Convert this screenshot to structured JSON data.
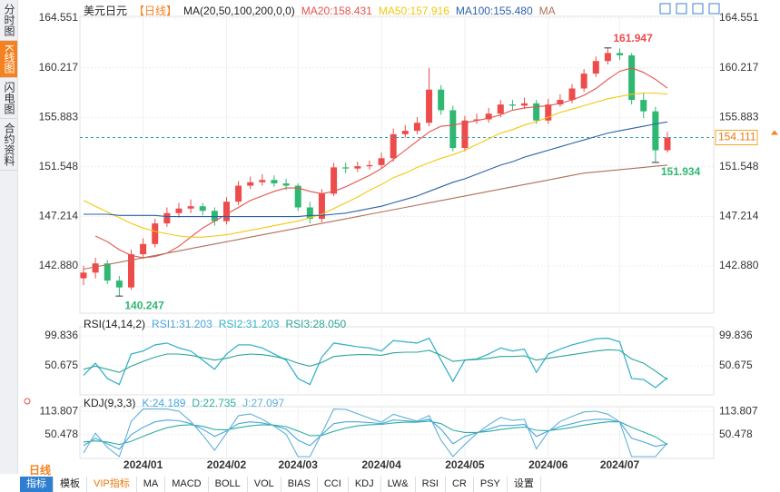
{
  "sidebar": {
    "tabs": [
      "分时图",
      "K线图",
      "闪电图",
      "合约资料"
    ],
    "active_tab": 1
  },
  "period_tab": "日线",
  "toolbar": [
    "指标",
    "模板",
    "VIP指标",
    "MA",
    "MACD",
    "BOLL",
    "VOL",
    "BIAS",
    "CCI",
    "KDJ",
    "LW&",
    "RSI",
    "CR",
    "PSY",
    "设置"
  ],
  "chart_data": [
    {
      "type": "candlestick",
      "symbol": "美元日元",
      "period": "【日线】",
      "indicator": "MA(20,50,100,200,0,0)",
      "up_color": "#ee4b4b",
      "down_color": "#2eb872",
      "open": [
        141.8,
        142.3,
        143.1,
        141.6,
        141.0,
        143.9,
        144.8,
        146.6,
        147.5,
        147.9,
        148.1,
        147.7,
        146.8,
        148.5,
        149.9,
        150.2,
        150.4,
        150.1,
        149.9,
        148.0,
        147.0,
        149.2,
        151.5,
        151.4,
        151.6,
        151.7,
        152.3,
        154.4,
        154.7,
        155.4,
        158.3,
        156.5,
        153.2,
        155.6,
        155.7,
        156.2,
        157.0,
        156.9,
        157.1,
        155.6,
        157.0,
        157.4,
        158.4,
        159.7,
        160.8,
        161.5,
        161.3,
        157.4,
        156.4,
        153.0
      ],
      "high": [
        142.9,
        143.6,
        143.4,
        142.0,
        144.3,
        145.3,
        147.0,
        148.0,
        148.4,
        148.7,
        148.4,
        148.0,
        148.9,
        150.3,
        150.7,
        150.9,
        150.8,
        150.5,
        150.1,
        148.5,
        149.6,
        151.9,
        151.9,
        152.0,
        152.1,
        152.8,
        154.9,
        155.2,
        155.9,
        160.2,
        158.7,
        156.9,
        156.0,
        156.2,
        156.7,
        157.4,
        157.4,
        157.6,
        157.4,
        157.5,
        157.9,
        158.8,
        160.1,
        161.2,
        161.947,
        161.9,
        161.5,
        158.0,
        156.8,
        154.6
      ],
      "low": [
        141.2,
        141.8,
        141.3,
        140.247,
        140.8,
        143.5,
        144.5,
        146.3,
        147.1,
        147.5,
        147.3,
        146.4,
        146.5,
        148.2,
        149.6,
        149.9,
        149.8,
        149.5,
        147.7,
        146.6,
        146.7,
        149.0,
        151.0,
        151.1,
        151.3,
        151.4,
        152.0,
        154.1,
        154.4,
        155.1,
        156.1,
        152.9,
        152.9,
        155.3,
        155.4,
        155.9,
        156.5,
        156.6,
        155.3,
        155.3,
        156.8,
        157.1,
        158.1,
        159.4,
        160.5,
        160.9,
        157.0,
        155.8,
        151.934,
        152.8
      ],
      "close": [
        142.3,
        143.1,
        141.6,
        141.0,
        143.9,
        144.8,
        146.6,
        147.5,
        147.9,
        148.1,
        147.7,
        146.8,
        148.5,
        149.9,
        150.2,
        150.4,
        150.1,
        149.9,
        148.0,
        147.0,
        149.2,
        151.5,
        151.4,
        151.6,
        151.7,
        152.3,
        154.4,
        154.7,
        155.4,
        158.3,
        156.5,
        153.2,
        155.6,
        155.7,
        156.2,
        157.0,
        156.9,
        157.1,
        155.6,
        157.0,
        157.4,
        158.4,
        159.7,
        160.8,
        161.5,
        161.3,
        157.4,
        156.4,
        153.0,
        154.111
      ],
      "series": [
        {
          "name": "MA20:158.431",
          "color": "#e5524d",
          "values": [
            null,
            145.5,
            145.0,
            144.3,
            143.8,
            143.6,
            143.7,
            144.0,
            144.6,
            145.4,
            146.2,
            146.8,
            147.4,
            148.0,
            148.6,
            149.0,
            149.4,
            149.7,
            149.7,
            149.4,
            149.2,
            149.4,
            149.8,
            150.3,
            150.8,
            151.4,
            152.2,
            153.0,
            153.8,
            154.6,
            155.1,
            155.2,
            155.4,
            155.6,
            155.8,
            156.1,
            156.5,
            156.7,
            156.8,
            156.9,
            157.1,
            157.4,
            157.8,
            158.4,
            159.2,
            159.9,
            160.2,
            159.8,
            159.2,
            158.431
          ]
        },
        {
          "name": "MA50:157.916",
          "color": "#f2c811",
          "values": [
            148.6,
            148.1,
            147.6,
            147.1,
            146.6,
            146.2,
            145.9,
            145.7,
            145.5,
            145.4,
            145.4,
            145.5,
            145.6,
            145.8,
            146.0,
            146.2,
            146.4,
            146.6,
            146.8,
            147.1,
            147.4,
            147.9,
            148.4,
            148.9,
            149.5,
            150.0,
            150.6,
            151.0,
            151.5,
            151.9,
            152.3,
            152.6,
            153.0,
            153.5,
            154.0,
            154.5,
            154.8,
            155.2,
            155.5,
            155.9,
            156.3,
            156.6,
            156.9,
            157.2,
            157.5,
            157.7,
            157.9,
            158.0,
            158.0,
            157.916
          ]
        },
        {
          "name": "MA100:155.480",
          "color": "#2d62a8",
          "values": [
            147.4,
            147.4,
            147.4,
            147.3,
            147.3,
            147.3,
            147.3,
            147.2,
            147.2,
            147.2,
            147.2,
            147.2,
            147.2,
            147.2,
            147.2,
            147.2,
            147.2,
            147.2,
            147.2,
            147.3,
            147.3,
            147.4,
            147.5,
            147.7,
            147.9,
            148.1,
            148.4,
            148.7,
            149.0,
            149.4,
            149.8,
            150.2,
            150.5,
            150.9,
            151.3,
            151.7,
            152.0,
            152.4,
            152.7,
            153.0,
            153.3,
            153.6,
            153.9,
            154.2,
            154.5,
            154.7,
            154.9,
            155.1,
            155.3,
            155.48
          ]
        },
        {
          "name": "MA",
          "color": "#b0705a",
          "values": [
            142.6,
            142.8,
            143.0,
            143.2,
            143.4,
            143.6,
            143.8,
            144.0,
            144.2,
            144.4,
            144.6,
            144.8,
            145.0,
            145.2,
            145.4,
            145.6,
            145.8,
            146.0,
            146.2,
            146.4,
            146.6,
            146.8,
            147.0,
            147.2,
            147.4,
            147.6,
            147.8,
            148.0,
            148.2,
            148.4,
            148.6,
            148.8,
            149.0,
            149.2,
            149.4,
            149.6,
            149.8,
            150.0,
            150.2,
            150.4,
            150.6,
            150.8,
            151.0,
            151.1,
            151.2,
            151.3,
            151.4,
            151.5,
            151.6,
            151.7
          ]
        }
      ],
      "ylim": [
        138.75,
        164.71
      ],
      "yticks": [
        {
          "value": 142.88,
          "label": "142.880"
        },
        147.214,
        151.548,
        155.883,
        160.217,
        164.551
      ],
      "extreme_labels": [
        {
          "value": 161.947,
          "label": "161.947"
        },
        {
          "value": 140.247,
          "label": "140.247"
        },
        {
          "value": 151.934,
          "label": "151.934"
        }
      ],
      "last": {
        "value": 154.111,
        "label": "154.111"
      },
      "grid": true
    },
    {
      "type": "line",
      "title": "RSI(14,14,2)",
      "series": [
        {
          "name": "RSI1:31.203",
          "color": "#4aa6e0",
          "values": [
            35,
            55,
            30,
            20,
            70,
            75,
            85,
            88,
            80,
            75,
            60,
            45,
            70,
            85,
            85,
            80,
            70,
            60,
            30,
            20,
            65,
            88,
            85,
            82,
            80,
            75,
            92,
            90,
            88,
            96,
            60,
            25,
            60,
            62,
            70,
            80,
            75,
            78,
            40,
            70,
            78,
            85,
            90,
            95,
            96,
            90,
            30,
            28,
            15,
            31.203
          ]
        },
        {
          "name": "RSI2:31.203",
          "color": "#33b3c8",
          "values": [
            35,
            55,
            30,
            20,
            70,
            75,
            85,
            88,
            80,
            75,
            60,
            45,
            70,
            85,
            85,
            80,
            70,
            60,
            30,
            20,
            65,
            88,
            85,
            82,
            80,
            75,
            92,
            90,
            88,
            96,
            60,
            25,
            60,
            62,
            70,
            80,
            75,
            78,
            40,
            70,
            78,
            85,
            90,
            95,
            96,
            90,
            30,
            28,
            15,
            31.203
          ]
        },
        {
          "name": "RSI3:28.050",
          "color": "#2aa596",
          "values": [
            45,
            50,
            45,
            40,
            50,
            58,
            65,
            70,
            70,
            68,
            64,
            60,
            63,
            68,
            70,
            69,
            66,
            62,
            55,
            50,
            56,
            66,
            68,
            69,
            69,
            68,
            72,
            73,
            73,
            76,
            68,
            58,
            60,
            61,
            63,
            66,
            66,
            67,
            60,
            63,
            66,
            69,
            72,
            75,
            77,
            76,
            62,
            55,
            42,
            28.05
          ]
        }
      ],
      "ylim": [
        3,
        114.7
      ],
      "yticks": [
        50.675,
        99.836
      ],
      "grid": true
    },
    {
      "type": "line",
      "title": "KDJ(9,3,3)",
      "categories": [
        null,
        null,
        null,
        null,
        null,
        "2024/01",
        null,
        null,
        null,
        null,
        null,
        null,
        "2024/02",
        null,
        null,
        null,
        null,
        null,
        "2024/03",
        null,
        null,
        null,
        null,
        null,
        null,
        "2024/04",
        null,
        null,
        null,
        null,
        null,
        null,
        "2024/05",
        null,
        null,
        null,
        null,
        null,
        null,
        "2024/06",
        null,
        null,
        null,
        null,
        null,
        "2024/07",
        null,
        null,
        null,
        null
      ],
      "series": [
        {
          "name": "K:24.189",
          "color": "#4aa6e0",
          "values": [
            20,
            40,
            25,
            10,
            50,
            70,
            85,
            90,
            88,
            80,
            65,
            45,
            60,
            80,
            85,
            82,
            75,
            65,
            35,
            20,
            50,
            80,
            85,
            85,
            83,
            80,
            90,
            88,
            85,
            92,
            65,
            25,
            45,
            55,
            65,
            75,
            75,
            78,
            45,
            60,
            72,
            80,
            88,
            92,
            92,
            85,
            40,
            30,
            18,
            24.189
          ]
        },
        {
          "name": "D:22.735",
          "color": "#2fae9e",
          "values": [
            30,
            33,
            30,
            23,
            32,
            45,
            58,
            69,
            75,
            77,
            73,
            64,
            63,
            69,
            74,
            77,
            76,
            72,
            60,
            47,
            48,
            59,
            68,
            74,
            77,
            78,
            82,
            84,
            84,
            87,
            80,
            62,
            56,
            56,
            59,
            64,
            68,
            71,
            62,
            61,
            65,
            70,
            76,
            81,
            85,
            85,
            70,
            57,
            44,
            22.735
          ]
        },
        {
          "name": "J:27.097",
          "color": "#5fb0d8",
          "values": [
            0,
            54,
            15,
            -10,
            86,
            120,
            120,
            120,
            114,
            86,
            49,
            7,
            54,
            102,
            107,
            92,
            73,
            51,
            -10,
            -10,
            54,
            120,
            119,
            107,
            95,
            84,
            106,
            96,
            87,
            102,
            35,
            -10,
            23,
            53,
            77,
            97,
            89,
            92,
            11,
            58,
            86,
            100,
            112,
            114,
            106,
            85,
            -10,
            -10,
            -10,
            27.097
          ]
        }
      ],
      "ylim": [
        -15,
        126.5
      ],
      "yticks": [
        50.478,
        113.807
      ],
      "grid": true
    }
  ]
}
